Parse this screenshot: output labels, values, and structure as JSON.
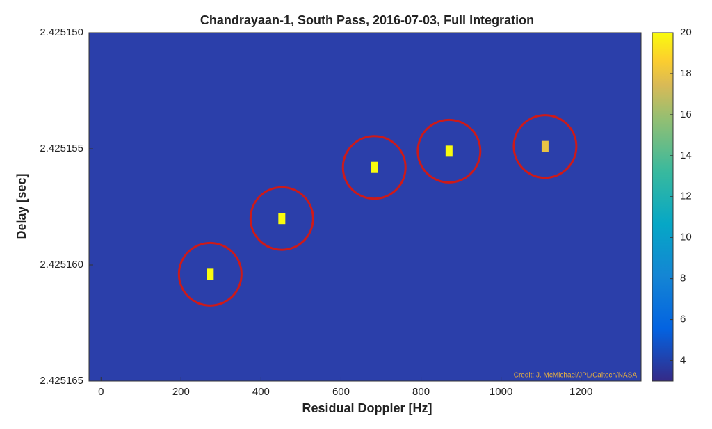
{
  "chart_data": {
    "type": "heatmap",
    "title": "Chandrayaan-1, South Pass, 2016-07-03, Full Integration",
    "xlabel": "Residual Doppler [Hz]",
    "ylabel": "Delay [sec]",
    "xlim": [
      -30,
      1350
    ],
    "xticks": [
      0,
      200,
      400,
      600,
      800,
      1000,
      1200
    ],
    "ylim": [
      2.425165,
      2.42515
    ],
    "yticks": [
      {
        "value": 2.42515,
        "label": "2.425150"
      },
      {
        "value": 2.425155,
        "label": "2.425155"
      },
      {
        "value": 2.42516,
        "label": "2.425160"
      },
      {
        "value": 2.425165,
        "label": "2.425165"
      }
    ],
    "y_reversed": true,
    "clim": [
      3,
      20
    ],
    "cticks": [
      4,
      6,
      8,
      10,
      12,
      14,
      16,
      18,
      20
    ],
    "points": [
      {
        "x": 273,
        "y": 2.4251604,
        "intensity": 20
      },
      {
        "x": 452,
        "y": 2.425158,
        "intensity": 20
      },
      {
        "x": 683,
        "y": 2.4251558,
        "intensity": 20
      },
      {
        "x": 870,
        "y": 2.4251551,
        "intensity": 20
      },
      {
        "x": 1110,
        "y": 2.4251549,
        "intensity": 18
      }
    ],
    "circle_color": "#cc1a1a",
    "credit": "Credit: J. McMichael/JPL/Caltech/NASA"
  }
}
